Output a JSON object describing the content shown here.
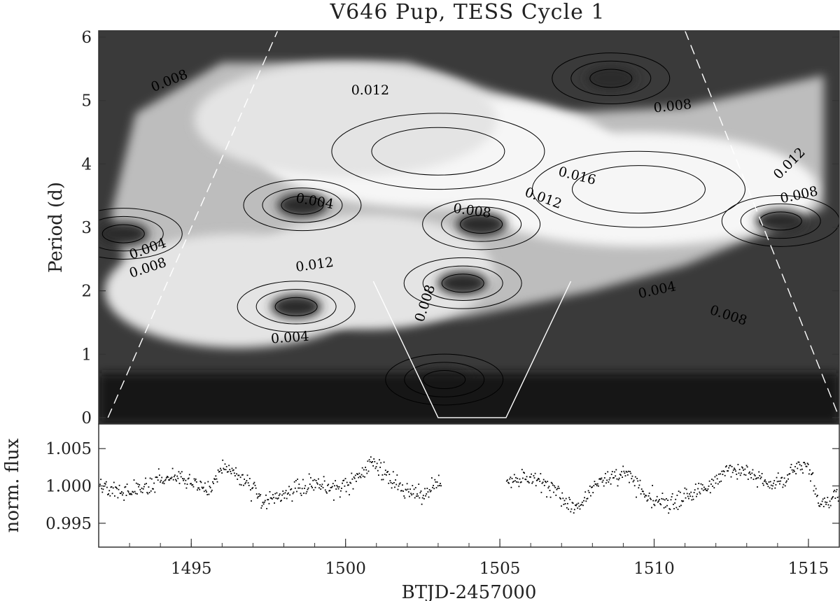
{
  "chart_data": [
    {
      "type": "heatmap",
      "title": "V646 Pup, TESS Cycle 1",
      "xlabel": "",
      "ylabel": "Period (d)",
      "xlim": [
        1492,
        1516
      ],
      "ylim": [
        -0.1,
        6.1
      ],
      "yticks": [
        "0",
        "1",
        "2",
        "3",
        "4",
        "5",
        "6"
      ],
      "colormap": "grayscale (black = low power, white = high power)",
      "contour_levels": [
        0.004,
        0.008,
        0.012,
        0.016
      ],
      "contour_labels": [
        {
          "text": "0.008",
          "x": 1494.3,
          "y": 5.3,
          "angle": -22
        },
        {
          "text": "0.012",
          "x": 1500.8,
          "y": 5.15,
          "angle": 0
        },
        {
          "text": "0.008",
          "x": 1510.6,
          "y": 4.9,
          "angle": -6
        },
        {
          "text": "0.016",
          "x": 1507.5,
          "y": 3.8,
          "angle": 14
        },
        {
          "text": "0.012",
          "x": 1514.4,
          "y": 4.0,
          "angle": -45
        },
        {
          "text": "0.008",
          "x": 1514.7,
          "y": 3.5,
          "angle": -12
        },
        {
          "text": "0.004",
          "x": 1499.0,
          "y": 3.4,
          "angle": 10
        },
        {
          "text": "0.012",
          "x": 1506.4,
          "y": 3.45,
          "angle": 20
        },
        {
          "text": "0.008",
          "x": 1504.1,
          "y": 3.25,
          "angle": 8
        },
        {
          "text": "0.004",
          "x": 1493.6,
          "y": 2.65,
          "angle": -20
        },
        {
          "text": "0.008",
          "x": 1493.6,
          "y": 2.35,
          "angle": -18
        },
        {
          "text": "0.012",
          "x": 1499.0,
          "y": 2.4,
          "angle": -8
        },
        {
          "text": "0.008",
          "x": 1502.6,
          "y": 1.8,
          "angle": -72
        },
        {
          "text": "0.004",
          "x": 1510.1,
          "y": 2.0,
          "angle": -12
        },
        {
          "text": "0.008",
          "x": 1512.4,
          "y": 1.6,
          "angle": 18
        },
        {
          "text": "0.004",
          "x": 1498.2,
          "y": 1.25,
          "angle": -4
        }
      ],
      "power_peaks": [
        {
          "x": 1503.0,
          "y": 4.2,
          "level": 0.018
        },
        {
          "x": 1509.5,
          "y": 3.6,
          "level": 0.018
        },
        {
          "x": 1500.0,
          "y": 4.7,
          "level": 0.015
        },
        {
          "x": 1496.5,
          "y": 2.0,
          "level": 0.013
        },
        {
          "x": 1500.8,
          "y": 2.3,
          "level": 0.012
        }
      ],
      "power_troughs": [
        {
          "x": 1508.6,
          "y": 5.35
        },
        {
          "x": 1498.6,
          "y": 3.35
        },
        {
          "x": 1504.4,
          "y": 3.05
        },
        {
          "x": 1514.1,
          "y": 3.1
        },
        {
          "x": 1492.8,
          "y": 2.9
        },
        {
          "x": 1503.8,
          "y": 2.12
        },
        {
          "x": 1498.4,
          "y": 1.75
        },
        {
          "x": 1503.2,
          "y": 0.6
        }
      ],
      "cone_of_influence": {
        "left_edge_dashed": [
          [
            1492.3,
            0.0
          ],
          [
            1497.8,
            6.1
          ]
        ],
        "right_edge_dashed": [
          [
            1511.0,
            6.1
          ],
          [
            1516.0,
            0.0
          ]
        ],
        "gap_cone_solid": [
          [
            1500.9,
            2.15
          ],
          [
            1503.0,
            0.0
          ],
          [
            1505.2,
            0.0
          ],
          [
            1507.3,
            2.15
          ]
        ]
      }
    },
    {
      "type": "scatter",
      "xlabel": "BTJD-2457000",
      "ylabel": "norm. flux",
      "xlim": [
        1492,
        1516
      ],
      "ylim": [
        0.9918,
        1.0083
      ],
      "xticks": [
        "1495",
        "1500",
        "1505",
        "1510",
        "1515"
      ],
      "yticks": [
        "0.995",
        "1.000",
        "1.005"
      ],
      "data_gap": [
        1503.1,
        1505.2
      ],
      "lightcurve_knots": {
        "x": [
          1492.0,
          1492.5,
          1493.2,
          1493.8,
          1494.5,
          1495.0,
          1495.5,
          1495.9,
          1496.3,
          1496.8,
          1497.3,
          1497.8,
          1498.4,
          1499.0,
          1499.6,
          1500.0,
          1500.4,
          1500.8,
          1501.1,
          1501.5,
          1502.0,
          1502.5,
          1503.0,
          1505.2,
          1505.7,
          1506.3,
          1506.8,
          1507.3,
          1507.6,
          1508.0,
          1508.5,
          1509.0,
          1509.5,
          1510.0,
          1510.4,
          1510.8,
          1511.2,
          1511.8,
          1512.4,
          1513.0,
          1513.6,
          1514.2,
          1514.7,
          1515.0,
          1515.4,
          1516.0
        ],
        "y": [
          1.0002,
          0.9996,
          0.9996,
          1.0003,
          1.0013,
          1.0007,
          0.9994,
          1.0017,
          1.0022,
          1.0004,
          0.998,
          0.9985,
          1.0,
          1.0002,
          0.9998,
          0.9998,
          1.0012,
          1.0032,
          1.0025,
          1.0005,
          0.9992,
          0.9988,
          1.0003,
          1.0009,
          1.0014,
          1.0008,
          0.999,
          0.9972,
          0.9978,
          0.9998,
          1.001,
          1.0018,
          1.0,
          0.9982,
          0.9975,
          0.9982,
          0.999,
          1.0,
          1.0025,
          1.002,
          1.0003,
          1.0007,
          1.0033,
          1.0025,
          0.9975,
          0.9988
        ]
      },
      "noise_amplitude": 0.0011,
      "cadence_days": 0.025
    }
  ]
}
